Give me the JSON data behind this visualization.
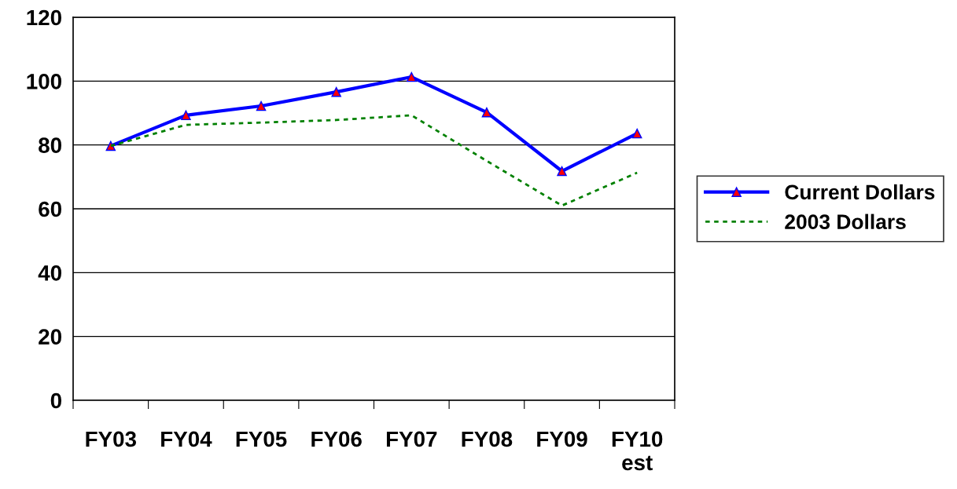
{
  "chart_data": {
    "type": "line",
    "categories": [
      "FY03",
      "FY04",
      "FY05",
      "FY06",
      "FY07",
      "FY08",
      "FY09",
      "FY10\nest"
    ],
    "series": [
      {
        "name": "Current Dollars",
        "color": "#0000ff",
        "values": [
          79.7,
          89.3,
          92.2,
          96.6,
          101.3,
          90.2,
          71.8,
          83.6
        ],
        "marker": "triangle",
        "line_style": "solid"
      },
      {
        "name": "2003 Dollars",
        "color": "#008000",
        "values": [
          79.7,
          86.3,
          87.0,
          87.8,
          89.3,
          75.0,
          61.0,
          71.3
        ],
        "marker": "none",
        "line_style": "dotted"
      }
    ],
    "ylim": [
      0,
      120
    ],
    "yticks": [
      0,
      20,
      40,
      60,
      80,
      100,
      120
    ],
    "grid": "y",
    "legend": "right"
  }
}
